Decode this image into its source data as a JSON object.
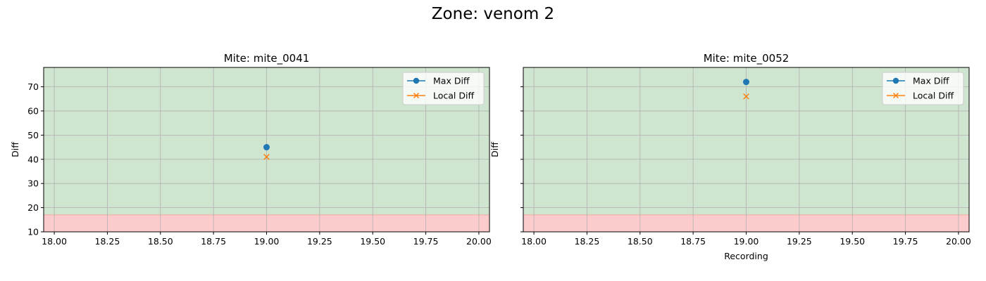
{
  "figure": {
    "suptitle": "Zone: venom 2"
  },
  "colors": {
    "good_zone": "#cfe5cf",
    "bad_zone": "#fccbcb",
    "max_diff": "#1f77b4",
    "local_diff": "#ff7f0e",
    "grid": "#b0b0b0"
  },
  "chart_data": [
    {
      "type": "scatter",
      "title": "Mite: mite_0041",
      "xlabel": "",
      "ylabel": "Diff",
      "xlim": [
        17.95,
        20.05
      ],
      "ylim": [
        10,
        78
      ],
      "xticks": [
        18.0,
        18.25,
        18.5,
        18.75,
        19.0,
        19.25,
        19.5,
        19.75,
        20.0
      ],
      "xtick_labels": [
        "18.00",
        "18.25",
        "18.50",
        "18.75",
        "19.00",
        "19.25",
        "19.50",
        "19.75",
        "20.00"
      ],
      "yticks": [
        10,
        20,
        30,
        40,
        50,
        60,
        70
      ],
      "ytick_labels": [
        "10",
        "20",
        "30",
        "40",
        "50",
        "60",
        "70"
      ],
      "threshold": 17,
      "grid": true,
      "legend_position": "top-right",
      "series": [
        {
          "name": "Max Diff",
          "marker": "o",
          "x": [
            19.0
          ],
          "y": [
            45
          ]
        },
        {
          "name": "Local Diff",
          "marker": "x",
          "x": [
            19.0
          ],
          "y": [
            41
          ]
        }
      ]
    },
    {
      "type": "scatter",
      "title": "Mite: mite_0052",
      "xlabel": "Recording",
      "ylabel": "Diff",
      "xlim": [
        17.95,
        20.05
      ],
      "ylim": [
        10,
        78
      ],
      "xticks": [
        18.0,
        18.25,
        18.5,
        18.75,
        19.0,
        19.25,
        19.5,
        19.75,
        20.0
      ],
      "xtick_labels": [
        "18.00",
        "18.25",
        "18.50",
        "18.75",
        "19.00",
        "19.25",
        "19.50",
        "19.75",
        "20.00"
      ],
      "yticks": [
        10,
        20,
        30,
        40,
        50,
        60,
        70
      ],
      "ytick_labels": [],
      "threshold": 17,
      "grid": true,
      "legend_position": "top-right",
      "series": [
        {
          "name": "Max Diff",
          "marker": "o",
          "x": [
            19.0
          ],
          "y": [
            72
          ]
        },
        {
          "name": "Local Diff",
          "marker": "x",
          "x": [
            19.0
          ],
          "y": [
            66
          ]
        }
      ]
    }
  ]
}
